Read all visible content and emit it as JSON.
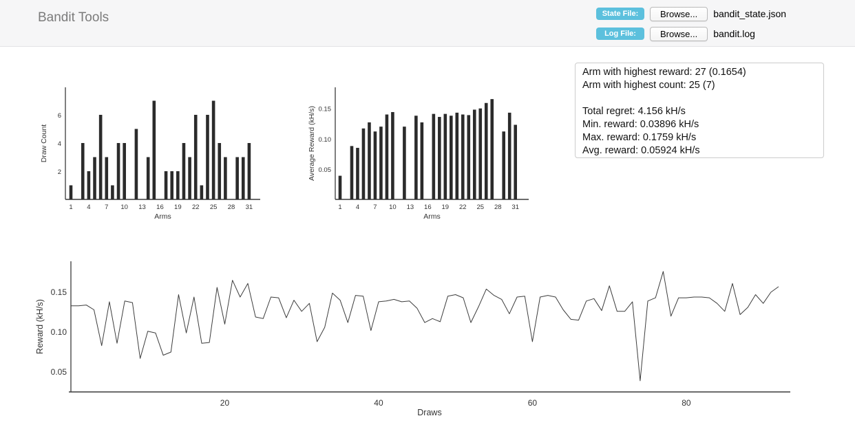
{
  "header": {
    "title": "Bandit Tools",
    "state_file": {
      "label": "State File:",
      "button": "Browse...",
      "filename": "bandit_state.json"
    },
    "log_file": {
      "label": "Log File:",
      "button": "Browse...",
      "filename": "bandit.log"
    },
    "badge_color": "#5cc0dd"
  },
  "stats": {
    "lines": [
      "Arm with highest reward: 27 (0.1654)",
      "Arm with highest count: 25 (7)",
      "",
      "Total regret: 4.156 kH/s",
      "Min. reward: 0.03896 kH/s",
      "Max. reward: 0.1759 kH/s",
      "Avg. reward: 0.05924 kH/s"
    ]
  },
  "chart_data": [
    {
      "id": "draw-count",
      "type": "bar",
      "xlabel": "Arms",
      "ylabel": "Draw Count",
      "categories": [
        1,
        2,
        3,
        4,
        5,
        6,
        7,
        8,
        9,
        10,
        11,
        12,
        13,
        14,
        15,
        16,
        17,
        18,
        19,
        20,
        21,
        22,
        23,
        24,
        25,
        26,
        27,
        28,
        29,
        30,
        31
      ],
      "values": [
        1,
        0,
        4,
        2,
        3,
        6,
        3,
        1,
        4,
        4,
        0,
        5,
        0,
        3,
        7,
        0,
        2,
        2,
        2,
        4,
        3,
        6,
        1,
        6,
        7,
        4,
        3,
        0,
        3,
        3,
        4
      ],
      "xticks": [
        1,
        4,
        7,
        10,
        13,
        16,
        19,
        22,
        25,
        28,
        31
      ],
      "yticks": [
        2,
        4,
        6
      ],
      "ylim": [
        0,
        8
      ],
      "grid": false,
      "bar_color": "#2b2b2b"
    },
    {
      "id": "avg-reward",
      "type": "bar",
      "xlabel": "Arms",
      "ylabel": "Average Reward (kH/s)",
      "categories": [
        1,
        2,
        3,
        4,
        5,
        6,
        7,
        8,
        9,
        10,
        11,
        12,
        13,
        14,
        15,
        16,
        17,
        18,
        19,
        20,
        21,
        22,
        23,
        24,
        25,
        26,
        27,
        28,
        29,
        30,
        31
      ],
      "values": [
        0.039,
        0,
        0.088,
        0.085,
        0.117,
        0.127,
        0.112,
        0.12,
        0.14,
        0.144,
        0,
        0.12,
        0,
        0.138,
        0.127,
        0,
        0.141,
        0.136,
        0.141,
        0.138,
        0.143,
        0.14,
        0.139,
        0.148,
        0.15,
        0.159,
        0.1654,
        0,
        0.112,
        0.143,
        0.123
      ],
      "xticks": [
        1,
        4,
        7,
        10,
        13,
        16,
        19,
        22,
        25,
        28,
        31
      ],
      "yticks": [
        0.05,
        0.1,
        0.15
      ],
      "ytick_labels": [
        "0.05",
        "0.10",
        "0.15"
      ],
      "ylim": [
        0,
        0.186
      ],
      "grid": false,
      "bar_color": "#2b2b2b"
    },
    {
      "id": "reward-line",
      "type": "line",
      "xlabel": "Draws",
      "ylabel": "Reward (kH/s)",
      "x_start": 0,
      "y": [
        0.133,
        0.133,
        0.134,
        0.128,
        0.083,
        0.138,
        0.086,
        0.139,
        0.137,
        0.067,
        0.101,
        0.099,
        0.071,
        0.075,
        0.147,
        0.099,
        0.144,
        0.086,
        0.087,
        0.156,
        0.11,
        0.165,
        0.144,
        0.161,
        0.119,
        0.117,
        0.144,
        0.143,
        0.118,
        0.14,
        0.126,
        0.136,
        0.088,
        0.106,
        0.149,
        0.14,
        0.112,
        0.146,
        0.145,
        0.102,
        0.138,
        0.139,
        0.141,
        0.138,
        0.139,
        0.13,
        0.112,
        0.117,
        0.113,
        0.145,
        0.147,
        0.143,
        0.112,
        0.132,
        0.154,
        0.146,
        0.141,
        0.123,
        0.144,
        0.145,
        0.088,
        0.144,
        0.146,
        0.144,
        0.128,
        0.116,
        0.115,
        0.139,
        0.142,
        0.127,
        0.158,
        0.126,
        0.126,
        0.138,
        0.039,
        0.139,
        0.143,
        0.176,
        0.12,
        0.143,
        0.143,
        0.144,
        0.144,
        0.143,
        0.136,
        0.126,
        0.161,
        0.122,
        0.131,
        0.147,
        0.136,
        0.15,
        0.157
      ],
      "xticks": [
        20,
        40,
        60,
        80
      ],
      "yticks": [
        0.05,
        0.1,
        0.15
      ],
      "ytick_labels": [
        "0.05",
        "0.10",
        "0.15"
      ],
      "xlim": [
        0,
        93
      ],
      "ylim": [
        0.025,
        0.19
      ],
      "grid": false,
      "line_color": "#3c3c3c"
    }
  ]
}
